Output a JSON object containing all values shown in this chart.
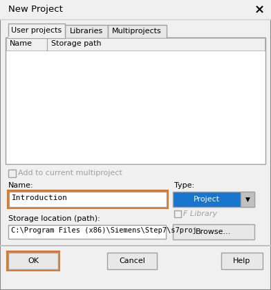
{
  "title": "New Project",
  "bg_color": "#f0f0f0",
  "white": "#ffffff",
  "tabs": [
    "User projects",
    "Libraries",
    "Multiprojects"
  ],
  "table_headers": [
    "Name",
    "Storage path"
  ],
  "checkbox_label": "Add to current multiproject",
  "name_label": "Name:",
  "name_value": "Introduction",
  "type_label": "Type:",
  "type_value": "Project",
  "storage_label": "Storage location (path):",
  "storage_value": "C:\\Program Files (x86)\\Siemens\\Step7\\s7proj",
  "browse_btn": "Browse...",
  "ok_btn": "OK",
  "cancel_btn": "Cancel",
  "help_btn": "Help",
  "f_library_label": "F Library",
  "orange": "#e07820",
  "blue_select": "#1874cd",
  "border_light": "#c8c8c8",
  "border_mid": "#a0a0a0",
  "border_dark": "#606060",
  "gray_text": "#a0a0a0",
  "tab_bg": "#e8e8e8",
  "title_bar_line": "#d0d0d0",
  "bottom_sep": "#c0c0c0",
  "header_bg": "#f0f0f0",
  "btn_bg": "#e8e8e8",
  "font": "monospace"
}
